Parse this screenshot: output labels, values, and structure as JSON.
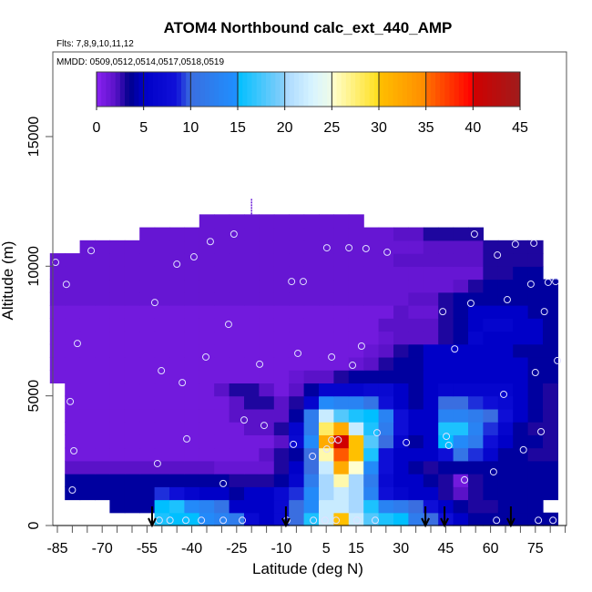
{
  "chart_data": {
    "type": "heatmap",
    "title": "ATOM4 Northbound calc_ext_440_AMP",
    "subtitle_flights": "Flts: 7,8,9,10,11,12",
    "subtitle_dates": "MMDD: 0509,0512,0514,0517,0518,0519",
    "xlabel": "Latitude (deg N)",
    "ylabel": "Altitude (m)",
    "xlim": [
      -86.5,
      85.5
    ],
    "ylim": [
      0,
      18250
    ],
    "x_ticks": [
      -85,
      -80,
      -75,
      -70,
      -65,
      -60,
      -55,
      -50,
      -45,
      -40,
      -35,
      -30,
      -25,
      -20,
      -15,
      -10,
      -5,
      0,
      5,
      10,
      15,
      20,
      25,
      30,
      35,
      40,
      45,
      50,
      55,
      60,
      65,
      70,
      75,
      80,
      85
    ],
    "x_tick_labels": [
      {
        "value": -85,
        "label": "-85"
      },
      {
        "value": -70,
        "label": "-70"
      },
      {
        "value": -55,
        "label": "-55"
      },
      {
        "value": -40,
        "label": "-40"
      },
      {
        "value": -25,
        "label": "-25"
      },
      {
        "value": -10,
        "label": "-10"
      },
      {
        "value": 5,
        "label": "5"
      },
      {
        "value": 15,
        "label": "15"
      },
      {
        "value": 30,
        "label": "30"
      },
      {
        "value": 45,
        "label": "45"
      },
      {
        "value": 60,
        "label": "60"
      },
      {
        "value": 75,
        "label": "75"
      }
    ],
    "y_tick_labels": [
      {
        "value": 0,
        "label": "0"
      },
      {
        "value": 5000,
        "label": "5000"
      },
      {
        "value": 10000,
        "label": "10000"
      },
      {
        "value": 15000,
        "label": "15000"
      }
    ],
    "colorbar": {
      "range": [
        0,
        45
      ],
      "tick_labels": [
        "0",
        "5",
        "10",
        "15",
        "20",
        "25",
        "30",
        "35",
        "40",
        "45"
      ],
      "tick_values": [
        0,
        5,
        10,
        15,
        20,
        25,
        30,
        35,
        40,
        45
      ],
      "color_stops": [
        [
          0,
          "#8a22f2"
        ],
        [
          2,
          "#5a12c8"
        ],
        [
          3.5,
          "#00008b"
        ],
        [
          5,
          "#0000c8"
        ],
        [
          8.5,
          "#1010d8"
        ],
        [
          10,
          "#3a6ee0"
        ],
        [
          14.9,
          "#1e90ff"
        ],
        [
          15,
          "#00bfff"
        ],
        [
          19.9,
          "#87cefa"
        ],
        [
          20,
          "#a8d8ff"
        ],
        [
          23,
          "#d8f4ff"
        ],
        [
          24.9,
          "#eefbe8"
        ],
        [
          25,
          "#ffffd0"
        ],
        [
          29.9,
          "#ffe020"
        ],
        [
          30,
          "#ffc000"
        ],
        [
          34.9,
          "#ff8c00"
        ],
        [
          35,
          "#ff7000"
        ],
        [
          39.9,
          "#ff0000"
        ],
        [
          40,
          "#d00000"
        ],
        [
          45,
          "#a01c1c"
        ]
      ]
    },
    "grid_latitudes": [
      -85,
      -80,
      -75,
      -70,
      -65,
      -60,
      -55,
      -50,
      -45,
      -40,
      -35,
      -30,
      -25,
      -20,
      -15,
      -10,
      -5,
      0,
      5,
      10,
      15,
      20,
      25,
      30,
      35,
      40,
      45,
      50,
      55,
      60,
      65,
      70,
      75,
      80
    ],
    "grid_altitude_step_m": 500,
    "grid_values_by_altitude": [
      [
        null,
        null,
        null,
        null,
        null,
        null,
        null,
        16,
        15,
        15,
        14,
        13,
        12,
        7,
        5,
        7,
        10,
        16,
        22,
        30,
        22,
        18,
        16,
        15,
        12,
        10,
        8,
        5,
        4,
        4,
        4,
        4,
        4,
        4
      ],
      [
        null,
        null,
        null,
        null,
        4,
        4,
        4,
        15,
        16,
        14,
        13,
        11,
        5,
        5,
        5,
        7,
        10,
        14,
        22,
        22,
        20,
        16,
        13,
        12,
        10,
        8,
        5,
        4,
        3,
        3,
        4,
        4,
        4,
        null
      ],
      [
        null,
        4,
        4,
        4,
        4,
        4,
        4,
        9,
        8,
        6,
        5,
        5,
        4,
        5,
        5,
        7,
        9,
        14,
        20,
        22,
        20,
        13,
        8,
        6,
        5,
        5,
        3,
        2,
        3,
        4,
        4,
        4,
        4,
        4
      ],
      [
        null,
        4,
        4,
        4,
        4,
        4,
        4,
        4,
        4,
        4,
        4,
        4,
        3,
        3,
        3,
        4,
        6,
        12,
        20,
        26,
        20,
        12,
        7,
        5,
        5,
        4,
        3,
        1,
        3,
        4,
        4,
        4,
        4,
        4
      ],
      [
        null,
        2,
        2,
        2,
        2,
        2,
        2,
        2,
        2,
        2,
        2,
        1.5,
        1.5,
        1.5,
        1.5,
        3,
        5,
        10,
        22,
        32,
        25,
        14,
        8,
        5,
        4,
        3,
        4,
        4,
        4,
        4,
        4,
        4,
        4,
        4
      ],
      [
        null,
        1,
        1,
        1,
        1,
        1,
        1,
        1,
        1,
        1,
        1,
        1,
        1,
        1,
        2,
        3,
        4,
        10,
        26,
        36,
        30,
        16,
        8,
        5,
        5,
        5,
        8,
        11,
        9,
        6,
        4,
        4,
        3,
        3
      ],
      [
        null,
        1,
        1,
        1,
        1,
        1,
        1,
        1,
        1,
        1,
        1,
        1,
        1,
        1,
        1,
        2,
        7,
        14,
        32,
        40,
        30,
        18,
        10,
        6,
        4,
        5,
        15,
        14,
        12,
        8,
        5,
        4,
        4,
        3
      ],
      [
        null,
        1,
        1,
        1,
        1,
        1,
        1,
        1,
        1,
        1,
        1,
        1,
        1,
        2,
        2,
        3,
        6,
        12,
        28,
        32,
        22,
        16,
        12,
        8,
        5,
        5,
        16,
        16,
        13,
        9,
        6,
        4,
        3,
        3
      ],
      [
        null,
        1,
        1,
        1,
        1,
        1,
        1,
        1,
        1,
        1,
        1,
        1,
        2,
        2,
        2,
        2,
        4,
        12,
        22,
        18,
        16,
        15,
        13,
        8,
        5,
        5,
        13,
        13,
        12,
        10,
        8,
        5,
        4,
        3
      ],
      [
        null,
        1,
        1,
        1,
        1,
        1,
        1,
        1,
        1,
        1,
        1,
        1,
        2,
        3,
        3,
        2,
        3,
        6,
        14,
        13,
        13,
        11,
        8,
        5,
        4,
        5,
        10,
        10,
        9,
        8,
        7,
        5,
        4,
        3
      ],
      [
        null,
        1,
        1,
        1,
        1,
        1,
        1,
        1,
        1,
        1,
        1,
        2,
        3,
        3,
        2,
        1,
        2,
        4,
        6,
        6,
        6,
        7,
        7,
        5,
        4,
        5,
        6,
        6,
        6,
        6,
        6,
        5,
        4,
        3
      ],
      [
        1,
        1,
        1,
        1,
        1,
        1,
        1,
        1,
        1,
        1,
        1,
        1,
        1,
        1,
        1,
        1,
        1.5,
        2,
        2,
        3,
        4,
        4,
        4,
        4,
        4,
        5,
        5,
        5,
        5,
        5,
        5,
        5,
        4,
        4
      ],
      [
        1,
        1,
        1,
        1,
        1,
        1,
        1,
        1,
        1,
        1,
        1,
        1,
        1,
        1,
        1,
        1,
        1,
        1,
        1,
        1,
        1.5,
        2,
        3,
        4,
        4,
        5,
        5,
        5,
        5,
        5,
        5,
        5,
        4,
        4
      ],
      [
        1,
        1,
        1,
        1,
        1,
        1,
        1,
        1,
        1,
        1,
        1,
        1,
        1,
        1,
        1,
        1,
        1,
        1,
        1,
        1,
        1,
        1.5,
        2,
        3,
        4,
        5,
        5,
        5,
        5,
        5,
        5,
        4,
        4,
        4
      ],
      [
        1,
        1,
        1,
        1,
        1,
        1,
        1,
        1,
        1,
        1,
        1,
        1,
        1,
        1,
        1,
        1,
        1,
        1,
        1,
        1,
        1,
        1,
        1.5,
        2,
        2,
        2,
        3,
        4,
        6,
        5,
        5,
        5,
        5,
        4
      ],
      [
        1,
        1,
        1,
        1,
        1,
        1,
        1,
        1,
        1,
        1,
        1,
        1,
        1,
        1,
        1,
        1,
        1,
        1,
        1,
        1,
        1,
        1,
        2,
        2,
        2,
        2,
        3,
        4,
        5,
        6,
        6,
        5,
        5,
        4
      ],
      [
        1,
        1,
        1,
        1,
        1,
        1,
        1,
        1,
        1,
        1,
        1,
        1,
        1,
        1,
        1,
        1,
        1,
        1,
        1,
        1,
        1,
        1,
        1,
        2,
        1.5,
        1.5,
        3,
        4,
        5,
        5,
        5,
        5,
        4,
        4
      ],
      [
        1.5,
        1.5,
        1.5,
        1.5,
        1.5,
        1.5,
        1.5,
        1.5,
        1.5,
        1.5,
        1.5,
        1.5,
        1.5,
        1.5,
        1.5,
        1.5,
        1.5,
        1.5,
        1.5,
        1.5,
        1.5,
        1.5,
        1.5,
        1.5,
        2,
        2,
        3,
        4,
        4,
        4,
        4,
        4,
        4,
        4
      ],
      [
        1.5,
        1.5,
        1.5,
        1.5,
        1.5,
        1.5,
        1.5,
        1.5,
        1.5,
        1.5,
        1.5,
        1.5,
        1.5,
        1.5,
        1.5,
        1.5,
        1.5,
        1.5,
        1.5,
        1.5,
        1.5,
        1.5,
        1.5,
        1.5,
        1.5,
        1.5,
        1.5,
        2,
        3,
        4,
        4,
        4,
        4,
        4
      ],
      [
        1.5,
        1.5,
        1.5,
        1.5,
        1.5,
        1.5,
        1.5,
        1.5,
        1.5,
        1.5,
        1.5,
        1.5,
        1.5,
        1.5,
        1.5,
        1.5,
        1.5,
        1.5,
        1.5,
        1.5,
        1.5,
        1.5,
        1.5,
        1.5,
        1.5,
        1.5,
        1.5,
        1.5,
        1.5,
        3,
        3,
        4,
        4,
        null
      ],
      [
        1.5,
        1.5,
        1.5,
        1.5,
        1.5,
        1.5,
        1.5,
        1.5,
        1.5,
        1.5,
        1.5,
        1.5,
        1.5,
        1.5,
        1.5,
        1.5,
        1.5,
        1.5,
        1.5,
        1.5,
        1.5,
        1.5,
        1.5,
        2,
        2,
        2,
        2,
        2,
        2,
        3,
        3,
        3,
        3,
        null
      ],
      [
        null,
        null,
        1.5,
        1.5,
        1.5,
        1.5,
        1.5,
        1.5,
        1.5,
        1.5,
        1.5,
        1.5,
        1.5,
        1.5,
        1.5,
        1.5,
        1.5,
        1.5,
        1.5,
        1.5,
        1.5,
        1.5,
        1.5,
        1.5,
        1.5,
        2,
        2,
        2,
        2,
        3,
        3,
        3,
        3,
        null
      ],
      [
        null,
        null,
        null,
        null,
        null,
        null,
        1.5,
        1.5,
        1.5,
        1.5,
        1.5,
        1.5,
        1.5,
        1.5,
        1.5,
        1.5,
        1.5,
        1.5,
        1.5,
        1.5,
        1.5,
        1.5,
        1.5,
        2,
        2,
        3,
        3,
        3,
        3,
        null,
        null,
        null,
        null,
        null
      ],
      [
        null,
        null,
        null,
        null,
        null,
        null,
        null,
        null,
        null,
        null,
        1.5,
        1.5,
        1.5,
        1.5,
        1.5,
        1.5,
        1.5,
        1.5,
        1.5,
        1.5,
        1.5,
        null,
        null,
        null,
        null,
        null,
        null,
        null,
        null,
        null,
        null,
        null,
        null,
        null
      ]
    ],
    "sample_points": [
      [
        -85.6,
        10150
      ],
      [
        -73.7,
        10600
      ],
      [
        -82,
        9300
      ],
      [
        -33.8,
        10950
      ],
      [
        -25.9,
        11240
      ],
      [
        -45,
        10080
      ],
      [
        -39.3,
        10360
      ],
      [
        -52.4,
        8600
      ],
      [
        -27.7,
        7760
      ],
      [
        -78.3,
        7020
      ],
      [
        -35.3,
        6500
      ],
      [
        -17.3,
        6220
      ],
      [
        -4.5,
        6640
      ],
      [
        -50.2,
        5970
      ],
      [
        -43.2,
        5510
      ],
      [
        -80.7,
        4780
      ],
      [
        -22.5,
        4070
      ],
      [
        -15.8,
        3860
      ],
      [
        -41.7,
        3340
      ],
      [
        -79.5,
        2880
      ],
      [
        -51.5,
        2390
      ],
      [
        -29.5,
        1620
      ],
      [
        -80,
        1370
      ],
      [
        -6.6,
        9410
      ],
      [
        -2.7,
        9410
      ],
      [
        5.2,
        10710
      ],
      [
        12.6,
        10710
      ],
      [
        18.3,
        10680
      ],
      [
        25.4,
        10540
      ],
      [
        54.6,
        11240
      ],
      [
        62.3,
        10430
      ],
      [
        68.3,
        10850
      ],
      [
        74.5,
        10890
      ],
      [
        73.5,
        9310
      ],
      [
        79.3,
        9380
      ],
      [
        81.8,
        9410
      ],
      [
        65.6,
        8710
      ],
      [
        53.4,
        8570
      ],
      [
        44,
        8250
      ],
      [
        78,
        8250
      ],
      [
        6.8,
        6500
      ],
      [
        13.8,
        6180
      ],
      [
        16.8,
        6920
      ],
      [
        48,
        6810
      ],
      [
        75,
        5900
      ],
      [
        82.4,
        6360
      ],
      [
        64.4,
        5060
      ],
      [
        -6,
        3130
      ],
      [
        6.8,
        3300
      ],
      [
        9,
        3300
      ],
      [
        5.2,
        2950
      ],
      [
        0.4,
        2670
      ],
      [
        22,
        3580
      ],
      [
        31.8,
        3200
      ],
      [
        45.2,
        3440
      ],
      [
        46,
        3090
      ],
      [
        76.9,
        3620
      ],
      [
        71,
        2920
      ],
      [
        61,
        2070
      ],
      [
        51.3,
        1760
      ],
      [
        -50.9,
        200
      ],
      [
        -47.3,
        200
      ],
      [
        -42,
        200
      ],
      [
        -36.8,
        200
      ],
      [
        -29.5,
        200
      ],
      [
        -23.1,
        200
      ],
      [
        -8.2,
        200
      ],
      [
        0.7,
        200
      ],
      [
        4.6,
        200
      ],
      [
        8.3,
        200
      ],
      [
        15.3,
        200
      ],
      [
        21.4,
        200
      ],
      [
        62,
        200
      ],
      [
        76,
        200
      ],
      [
        80.9,
        200
      ]
    ],
    "arrow_latitudes": [
      -53.3,
      -8.5,
      38.2,
      44.6,
      66.8
    ],
    "grid": false,
    "legend": "top (horizontal colorbar)"
  }
}
